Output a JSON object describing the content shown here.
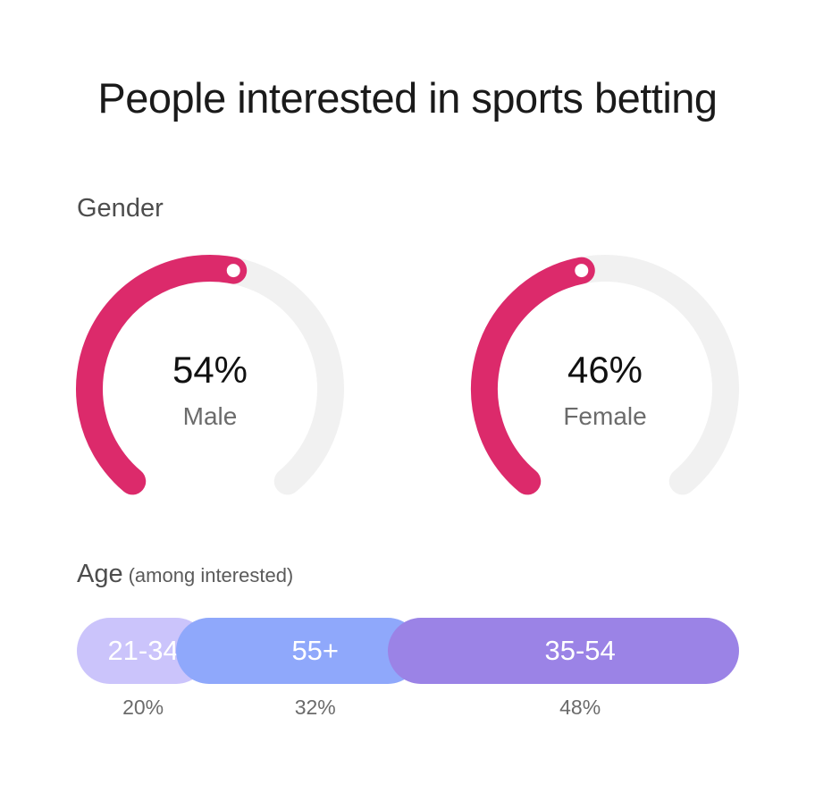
{
  "colors": {
    "accent": "#dc2a6b",
    "track": "#f1f1f1",
    "age_21_34": "#cbc4fb",
    "age_55_plus": "#8fa8fb",
    "age_35_54": "#9b83e6"
  },
  "chart_data": [
    {
      "type": "gauge",
      "title": "People interested in sports betting",
      "section": "Gender",
      "items": [
        {
          "label": "Male",
          "value": 54,
          "display": "54%"
        },
        {
          "label": "Female",
          "value": 46,
          "display": "46%"
        }
      ]
    },
    {
      "type": "bar",
      "section": "Age",
      "section_note": "(among interested)",
      "categories": [
        "21-34",
        "55+",
        "35-54"
      ],
      "values": [
        20,
        32,
        48
      ],
      "value_labels": [
        "20%",
        "32%",
        "48%"
      ]
    }
  ]
}
